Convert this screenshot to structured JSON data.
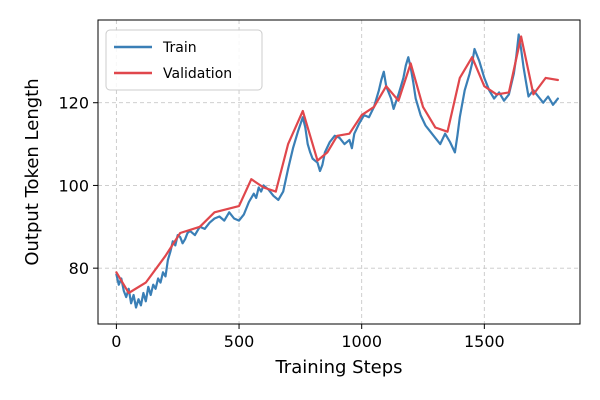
{
  "chart_data": {
    "type": "line",
    "xlabel": "Training Steps",
    "ylabel": "Output Token Length",
    "xlim": [
      -75,
      1890
    ],
    "ylim": [
      66.5,
      140
    ],
    "xticks": [
      0,
      500,
      1000,
      1500
    ],
    "yticks": [
      80,
      100,
      120
    ],
    "grid": true,
    "legend_position": "top-left",
    "series": [
      {
        "name": "Train",
        "color": "#3a7fb6",
        "points": [
          [
            0,
            78.5
          ],
          [
            10,
            76.0
          ],
          [
            20,
            77.5
          ],
          [
            30,
            74.5
          ],
          [
            40,
            73.0
          ],
          [
            50,
            75.0
          ],
          [
            60,
            71.5
          ],
          [
            70,
            73.5
          ],
          [
            80,
            70.5
          ],
          [
            90,
            72.5
          ],
          [
            100,
            71.0
          ],
          [
            110,
            74.0
          ],
          [
            120,
            72.0
          ],
          [
            130,
            75.5
          ],
          [
            140,
            73.5
          ],
          [
            150,
            76.0
          ],
          [
            160,
            75.0
          ],
          [
            170,
            77.5
          ],
          [
            180,
            76.5
          ],
          [
            190,
            79.0
          ],
          [
            200,
            78.0
          ],
          [
            210,
            82.0
          ],
          [
            220,
            84.0
          ],
          [
            230,
            86.5
          ],
          [
            240,
            85.5
          ],
          [
            250,
            88.0
          ],
          [
            260,
            87.5
          ],
          [
            270,
            86.0
          ],
          [
            280,
            87.0
          ],
          [
            290,
            88.5
          ],
          [
            300,
            89.0
          ],
          [
            320,
            88.0
          ],
          [
            340,
            90.0
          ],
          [
            360,
            89.5
          ],
          [
            380,
            91.0
          ],
          [
            400,
            92.0
          ],
          [
            420,
            92.5
          ],
          [
            440,
            91.5
          ],
          [
            460,
            93.5
          ],
          [
            480,
            92.0
          ],
          [
            500,
            91.5
          ],
          [
            520,
            93.0
          ],
          [
            540,
            96.0
          ],
          [
            560,
            98.0
          ],
          [
            570,
            97.0
          ],
          [
            580,
            99.5
          ],
          [
            590,
            98.5
          ],
          [
            600,
            100.0
          ],
          [
            620,
            99.0
          ],
          [
            640,
            97.5
          ],
          [
            660,
            96.5
          ],
          [
            680,
            98.5
          ],
          [
            700,
            104.0
          ],
          [
            720,
            109.0
          ],
          [
            740,
            113.0
          ],
          [
            760,
            116.5
          ],
          [
            770,
            114.0
          ],
          [
            780,
            110.0
          ],
          [
            790,
            108.0
          ],
          [
            800,
            106.5
          ],
          [
            820,
            105.5
          ],
          [
            830,
            103.5
          ],
          [
            840,
            105.0
          ],
          [
            850,
            108.0
          ],
          [
            870,
            110.5
          ],
          [
            890,
            112.0
          ],
          [
            910,
            111.5
          ],
          [
            930,
            110.0
          ],
          [
            950,
            111.0
          ],
          [
            960,
            109.0
          ],
          [
            970,
            112.5
          ],
          [
            990,
            115.0
          ],
          [
            1010,
            117.0
          ],
          [
            1030,
            116.5
          ],
          [
            1050,
            119.0
          ],
          [
            1070,
            123.0
          ],
          [
            1080,
            125.5
          ],
          [
            1090,
            127.5
          ],
          [
            1100,
            124.0
          ],
          [
            1120,
            121.0
          ],
          [
            1130,
            118.5
          ],
          [
            1150,
            122.0
          ],
          [
            1170,
            126.0
          ],
          [
            1180,
            129.0
          ],
          [
            1190,
            131.0
          ],
          [
            1200,
            128.5
          ],
          [
            1210,
            125.0
          ],
          [
            1220,
            121.0
          ],
          [
            1240,
            117.0
          ],
          [
            1260,
            114.5
          ],
          [
            1280,
            113.0
          ],
          [
            1300,
            111.5
          ],
          [
            1320,
            110.0
          ],
          [
            1340,
            112.5
          ],
          [
            1360,
            110.5
          ],
          [
            1380,
            108.0
          ],
          [
            1390,
            112.0
          ],
          [
            1400,
            116.5
          ],
          [
            1420,
            123.0
          ],
          [
            1440,
            127.0
          ],
          [
            1450,
            129.5
          ],
          [
            1460,
            133.0
          ],
          [
            1480,
            130.0
          ],
          [
            1500,
            126.0
          ],
          [
            1520,
            123.0
          ],
          [
            1540,
            121.0
          ],
          [
            1560,
            122.5
          ],
          [
            1580,
            120.5
          ],
          [
            1600,
            122.0
          ],
          [
            1620,
            127.0
          ],
          [
            1630,
            131.0
          ],
          [
            1640,
            136.5
          ],
          [
            1650,
            133.0
          ],
          [
            1660,
            128.5
          ],
          [
            1670,
            125.0
          ],
          [
            1680,
            121.5
          ],
          [
            1700,
            123.0
          ],
          [
            1720,
            121.5
          ],
          [
            1740,
            120.0
          ],
          [
            1760,
            121.5
          ],
          [
            1780,
            119.5
          ],
          [
            1800,
            121.0
          ]
        ]
      },
      {
        "name": "Validation",
        "color": "#e0474c",
        "points": [
          [
            0,
            79.0
          ],
          [
            50,
            74.0
          ],
          [
            120,
            76.5
          ],
          [
            200,
            83.0
          ],
          [
            260,
            88.5
          ],
          [
            340,
            90.0
          ],
          [
            400,
            93.5
          ],
          [
            500,
            95.0
          ],
          [
            550,
            101.5
          ],
          [
            600,
            99.5
          ],
          [
            650,
            98.5
          ],
          [
            700,
            110.0
          ],
          [
            760,
            118.0
          ],
          [
            820,
            106.0
          ],
          [
            860,
            108.0
          ],
          [
            900,
            112.0
          ],
          [
            950,
            112.5
          ],
          [
            1000,
            117.0
          ],
          [
            1050,
            119.0
          ],
          [
            1100,
            124.0
          ],
          [
            1150,
            120.5
          ],
          [
            1200,
            129.5
          ],
          [
            1250,
            119.0
          ],
          [
            1300,
            114.0
          ],
          [
            1350,
            113.0
          ],
          [
            1400,
            126.0
          ],
          [
            1450,
            131.0
          ],
          [
            1500,
            124.0
          ],
          [
            1550,
            122.0
          ],
          [
            1600,
            122.5
          ],
          [
            1650,
            136.0
          ],
          [
            1700,
            122.0
          ],
          [
            1750,
            126.0
          ],
          [
            1800,
            125.5
          ]
        ]
      }
    ]
  }
}
